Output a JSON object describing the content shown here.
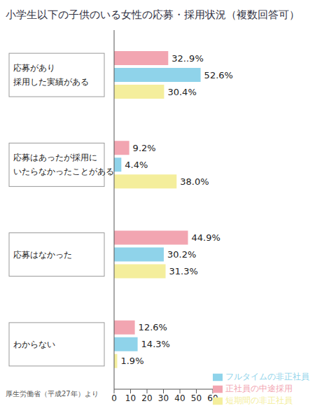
{
  "chart_data": {
    "type": "bar",
    "orientation": "horizontal",
    "title": "小学生以下の子供のいる女性の応募・採用状況（複数回答可）",
    "annotations": [
      "厚生労働省（平成27年）より"
    ],
    "categories": [
      "応募があり\n採用した実績がある",
      "応募はあったが採用に\nいたらなかったことがある",
      "応募はなかった",
      "わからない"
    ],
    "series": [
      {
        "name": "正社員の中途採用",
        "color": "#f2a5b1",
        "values": [
          32.9,
          9.2,
          44.9,
          12.6
        ],
        "value_labels": [
          "32..9%",
          "9.2%",
          "44.9%",
          "12.6%"
        ]
      },
      {
        "name": "フルタイムの非正社員",
        "color": "#8fd3ea",
        "values": [
          52.6,
          4.4,
          30.2,
          14.3
        ],
        "value_labels": [
          "52.6%",
          "4.4%",
          "30.2%",
          "14.3%"
        ]
      },
      {
        "name": "短期間の非正社員",
        "color": "#f4ee9c",
        "values": [
          30.4,
          38.0,
          31.3,
          1.9
        ],
        "value_labels": [
          "30.4%",
          "38.0%",
          "31.3%",
          "1.9%"
        ]
      }
    ],
    "xlim": [
      0,
      60
    ],
    "xticks": [
      0,
      10,
      20,
      30,
      40,
      50,
      60
    ],
    "grid": false,
    "legend": "lower right",
    "data_labels": true
  }
}
